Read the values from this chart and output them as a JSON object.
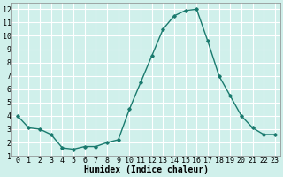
{
  "x": [
    0,
    1,
    2,
    3,
    4,
    5,
    6,
    7,
    8,
    9,
    10,
    11,
    12,
    13,
    14,
    15,
    16,
    17,
    18,
    19,
    20,
    21,
    22,
    23
  ],
  "y": [
    4.0,
    3.1,
    3.0,
    2.6,
    1.6,
    1.5,
    1.7,
    1.7,
    2.0,
    2.2,
    4.5,
    6.5,
    8.5,
    10.5,
    11.5,
    11.9,
    12.0,
    9.6,
    7.0,
    5.5,
    4.0,
    3.1,
    2.6,
    2.6
  ],
  "xlabel": "Humidex (Indice chaleur)",
  "line_color": "#1a7a6e",
  "marker": "D",
  "marker_size": 1.8,
  "bg_color": "#d0f0eb",
  "grid_color": "#ffffff",
  "xlim": [
    -0.5,
    23.5
  ],
  "ylim": [
    1,
    12.5
  ],
  "yticks": [
    1,
    2,
    3,
    4,
    5,
    6,
    7,
    8,
    9,
    10,
    11,
    12
  ],
  "xticks": [
    0,
    1,
    2,
    3,
    4,
    5,
    6,
    7,
    8,
    9,
    10,
    11,
    12,
    13,
    14,
    15,
    16,
    17,
    18,
    19,
    20,
    21,
    22,
    23
  ],
  "xlabel_fontsize": 7.0,
  "tick_fontsize": 6.0,
  "line_width": 1.0
}
